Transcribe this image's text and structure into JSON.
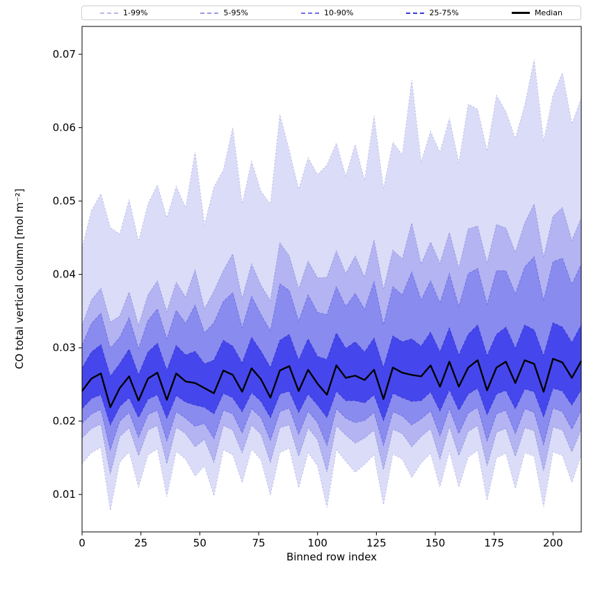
{
  "chart_data": {
    "type": "area",
    "title": "",
    "xlabel": "Binned row index",
    "ylabel": "CO total vertical column [mol m⁻²]",
    "xlim": [
      0,
      212
    ],
    "ylim": [
      0.0049,
      0.0738
    ],
    "x_ticks": [
      0,
      25,
      50,
      75,
      100,
      125,
      150,
      175,
      200
    ],
    "y_ticks": [
      0.01,
      0.02,
      0.03,
      0.04,
      0.05,
      0.06,
      0.07
    ],
    "grid": false,
    "legend_position": "top",
    "legend": [
      {
        "label": "1-99%",
        "type": "band"
      },
      {
        "label": "5-95%",
        "type": "band"
      },
      {
        "label": "10-90%",
        "type": "band"
      },
      {
        "label": "25-75%",
        "type": "band"
      },
      {
        "label": "Median",
        "type": "median"
      }
    ],
    "x": [
      0,
      4,
      8,
      12,
      16,
      20,
      24,
      28,
      32,
      36,
      40,
      44,
      48,
      52,
      56,
      60,
      64,
      68,
      72,
      76,
      80,
      84,
      88,
      92,
      96,
      100,
      104,
      108,
      112,
      116,
      120,
      124,
      128,
      132,
      136,
      140,
      144,
      148,
      152,
      156,
      160,
      164,
      168,
      172,
      176,
      180,
      184,
      188,
      192,
      196,
      200,
      204,
      208,
      212
    ],
    "series": [
      {
        "name": "p01",
        "values": [
          0.0142,
          0.0157,
          0.0164,
          0.0078,
          0.0144,
          0.0158,
          0.011,
          0.0154,
          0.0162,
          0.0097,
          0.0159,
          0.0148,
          0.0125,
          0.0139,
          0.0098,
          0.0161,
          0.0154,
          0.0116,
          0.0162,
          0.0147,
          0.0099,
          0.0157,
          0.0163,
          0.0109,
          0.0157,
          0.0139,
          0.0082,
          0.0161,
          0.0145,
          0.013,
          0.0141,
          0.0154,
          0.0086,
          0.0155,
          0.0148,
          0.0123,
          0.0143,
          0.0156,
          0.011,
          0.0159,
          0.011,
          0.0151,
          0.016,
          0.0092,
          0.015,
          0.0156,
          0.0108,
          0.0157,
          0.0152,
          0.0083,
          0.0158,
          0.0153,
          0.0116,
          0.0154
        ]
      },
      {
        "name": "p05",
        "values": [
          0.0177,
          0.019,
          0.0196,
          0.0128,
          0.0179,
          0.0191,
          0.0153,
          0.0188,
          0.0194,
          0.0142,
          0.0192,
          0.0183,
          0.0165,
          0.0175,
          0.0144,
          0.0194,
          0.0188,
          0.0157,
          0.0195,
          0.0182,
          0.0144,
          0.0191,
          0.0195,
          0.0152,
          0.0191,
          0.0175,
          0.0131,
          0.0194,
          0.0181,
          0.017,
          0.0177,
          0.0188,
          0.0134,
          0.0189,
          0.0183,
          0.0165,
          0.0179,
          0.019,
          0.0148,
          0.0193,
          0.0153,
          0.0186,
          0.0194,
          0.0139,
          0.0185,
          0.019,
          0.0152,
          0.0191,
          0.0187,
          0.0132,
          0.0192,
          0.0188,
          0.0158,
          0.0189
        ]
      },
      {
        "name": "p10",
        "values": [
          0.0197,
          0.021,
          0.0216,
          0.0161,
          0.02,
          0.0212,
          0.0178,
          0.0209,
          0.0215,
          0.0173,
          0.0213,
          0.0204,
          0.0193,
          0.0197,
          0.0176,
          0.0215,
          0.021,
          0.0184,
          0.0217,
          0.0205,
          0.0174,
          0.0213,
          0.0218,
          0.0182,
          0.0214,
          0.0198,
          0.0167,
          0.0217,
          0.0204,
          0.0198,
          0.0201,
          0.0212,
          0.0167,
          0.0213,
          0.0207,
          0.0195,
          0.0203,
          0.0214,
          0.018,
          0.0217,
          0.0183,
          0.0211,
          0.0219,
          0.0173,
          0.021,
          0.0215,
          0.0183,
          0.0217,
          0.0212,
          0.0168,
          0.0218,
          0.0213,
          0.0189,
          0.0215
        ]
      },
      {
        "name": "p25",
        "values": [
          0.0217,
          0.0231,
          0.0236,
          0.0195,
          0.022,
          0.0232,
          0.0205,
          0.023,
          0.0236,
          0.0204,
          0.0235,
          0.0226,
          0.0222,
          0.0219,
          0.021,
          0.0238,
          0.0232,
          0.0213,
          0.0239,
          0.0227,
          0.0205,
          0.0237,
          0.0241,
          0.0212,
          0.0237,
          0.0222,
          0.0205,
          0.0241,
          0.0228,
          0.0228,
          0.0225,
          0.0236,
          0.0201,
          0.0238,
          0.0232,
          0.0227,
          0.0228,
          0.024,
          0.0214,
          0.0243,
          0.0215,
          0.0237,
          0.0245,
          0.0209,
          0.0237,
          0.0242,
          0.0217,
          0.0244,
          0.024,
          0.0206,
          0.0245,
          0.0241,
          0.0222,
          0.0243
        ]
      },
      {
        "name": "median",
        "values": [
          0.0241,
          0.0258,
          0.0265,
          0.0219,
          0.0245,
          0.0261,
          0.0228,
          0.0258,
          0.0266,
          0.0229,
          0.0265,
          0.0254,
          0.0252,
          0.0245,
          0.0238,
          0.0269,
          0.0263,
          0.024,
          0.0272,
          0.0257,
          0.0232,
          0.0269,
          0.0275,
          0.0241,
          0.027,
          0.0251,
          0.0236,
          0.0276,
          0.0259,
          0.0262,
          0.0256,
          0.027,
          0.023,
          0.0273,
          0.0266,
          0.0263,
          0.0261,
          0.0276,
          0.0247,
          0.0281,
          0.0247,
          0.0273,
          0.0283,
          0.0242,
          0.0273,
          0.0281,
          0.0252,
          0.0283,
          0.0278,
          0.024,
          0.0285,
          0.028,
          0.0259,
          0.0282
        ]
      },
      {
        "name": "p75",
        "values": [
          0.0272,
          0.0294,
          0.0304,
          0.0261,
          0.0278,
          0.0298,
          0.0263,
          0.0294,
          0.0306,
          0.0269,
          0.0303,
          0.029,
          0.0295,
          0.0278,
          0.0283,
          0.031,
          0.0302,
          0.0279,
          0.0314,
          0.0295,
          0.0273,
          0.031,
          0.0318,
          0.0283,
          0.0312,
          0.0288,
          0.0284,
          0.032,
          0.0299,
          0.0308,
          0.0294,
          0.0313,
          0.0273,
          0.0316,
          0.0308,
          0.0312,
          0.0302,
          0.0321,
          0.0294,
          0.0327,
          0.029,
          0.0318,
          0.0331,
          0.0289,
          0.0318,
          0.0328,
          0.0299,
          0.0331,
          0.0324,
          0.0289,
          0.0334,
          0.0328,
          0.0307,
          0.0331
        ]
      },
      {
        "name": "p90",
        "values": [
          0.0303,
          0.0333,
          0.0347,
          0.0299,
          0.0314,
          0.0341,
          0.0299,
          0.0337,
          0.0353,
          0.0312,
          0.0351,
          0.0333,
          0.0358,
          0.032,
          0.0334,
          0.0363,
          0.0375,
          0.0327,
          0.037,
          0.0345,
          0.0323,
          0.0387,
          0.0378,
          0.0336,
          0.0372,
          0.0348,
          0.0345,
          0.0383,
          0.0356,
          0.0374,
          0.0352,
          0.039,
          0.0331,
          0.0383,
          0.0372,
          0.0403,
          0.0365,
          0.0391,
          0.0361,
          0.0401,
          0.0356,
          0.0401,
          0.0408,
          0.0359,
          0.0405,
          0.0405,
          0.0373,
          0.041,
          0.0424,
          0.0364,
          0.0417,
          0.0422,
          0.0386,
          0.0414
        ]
      },
      {
        "name": "p95",
        "values": [
          0.033,
          0.0365,
          0.0381,
          0.0335,
          0.0343,
          0.0376,
          0.033,
          0.0372,
          0.0391,
          0.0349,
          0.0389,
          0.0369,
          0.0406,
          0.0353,
          0.0377,
          0.0405,
          0.0428,
          0.0367,
          0.0414,
          0.0385,
          0.0364,
          0.0443,
          0.0425,
          0.038,
          0.0418,
          0.0395,
          0.0396,
          0.0432,
          0.0401,
          0.0425,
          0.0396,
          0.0447,
          0.0379,
          0.0433,
          0.0421,
          0.047,
          0.0414,
          0.0444,
          0.0415,
          0.0457,
          0.0408,
          0.0462,
          0.0466,
          0.0415,
          0.0468,
          0.0463,
          0.043,
          0.047,
          0.0496,
          0.0423,
          0.0479,
          0.0491,
          0.0446,
          0.0477
        ]
      },
      {
        "name": "p99",
        "values": [
          0.0436,
          0.0487,
          0.051,
          0.0464,
          0.0455,
          0.0502,
          0.0445,
          0.0496,
          0.0522,
          0.0477,
          0.052,
          0.0491,
          0.0567,
          0.0468,
          0.0519,
          0.0542,
          0.06,
          0.0496,
          0.0554,
          0.0513,
          0.0496,
          0.0618,
          0.0569,
          0.0516,
          0.0559,
          0.0536,
          0.0549,
          0.0579,
          0.0534,
          0.0577,
          0.0528,
          0.0616,
          0.0517,
          0.058,
          0.0563,
          0.0665,
          0.0553,
          0.0595,
          0.0566,
          0.0613,
          0.0552,
          0.0632,
          0.0625,
          0.0568,
          0.0644,
          0.0622,
          0.0585,
          0.0631,
          0.0693,
          0.0581,
          0.0644,
          0.0675,
          0.0605,
          0.064
        ]
      }
    ],
    "bands": [
      {
        "label": "1-99%",
        "lower": "p01",
        "upper": "p99",
        "fill": "#dbdcf7",
        "edge": "#b8b8ea",
        "dash": "2 3"
      },
      {
        "label": "5-95%",
        "lower": "p05",
        "upper": "p95",
        "fill": "#b3b4f1",
        "edge": "#9a9ae6",
        "dash": "3 2"
      },
      {
        "label": "10-90%",
        "lower": "p10",
        "upper": "p90",
        "fill": "#898bee",
        "edge": "#7070e8",
        "dash": "4 2"
      },
      {
        "label": "25-75%",
        "lower": "p25",
        "upper": "p75",
        "fill": "#4547ec",
        "edge": "#3838dc",
        "dash": "5 2"
      }
    ],
    "median": {
      "label": "Median",
      "color": "#000000",
      "width": 2.4
    },
    "axes_color": "#000000"
  }
}
